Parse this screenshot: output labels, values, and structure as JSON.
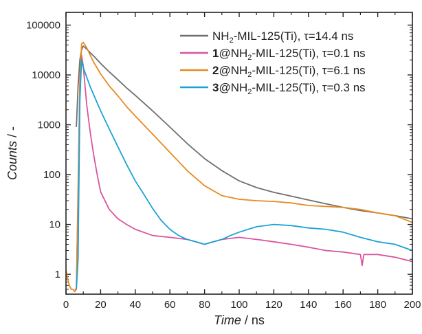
{
  "chart_data": {
    "type": "line",
    "xlabel": {
      "italic": "Time",
      "rest": " / ns"
    },
    "ylabel": {
      "italic": "Counts",
      "rest": " / -"
    },
    "xlim": [
      0,
      200
    ],
    "ylim": [
      0.4,
      180000
    ],
    "yscale": "log",
    "x_ticks": [
      0,
      20,
      40,
      60,
      80,
      100,
      120,
      140,
      160,
      180,
      200
    ],
    "y_ticks": [
      1,
      10,
      100,
      1000,
      10000,
      100000
    ],
    "y_tick_labels": [
      "1",
      "10",
      "100",
      "1000",
      "10000",
      "100000"
    ],
    "legend_position": "top-right",
    "series": [
      {
        "name": "NH2-MIL-125(Ti), τ=14.4 ns",
        "legend": {
          "bold": "",
          "pre": "NH",
          "sub": "2",
          "post": "-MIL-125(Ti), τ=14.4 ns"
        },
        "color": "#6f6f6f",
        "x": [
          6,
          7,
          8,
          9,
          10,
          12,
          14,
          16,
          20,
          25,
          30,
          35,
          40,
          50,
          60,
          70,
          80,
          90,
          100,
          110,
          120,
          130,
          140,
          150,
          160,
          170,
          180,
          190,
          200
        ],
        "y": [
          900,
          6000,
          20000,
          32000,
          38000,
          33000,
          28000,
          24000,
          17000,
          11500,
          8000,
          5500,
          3900,
          1900,
          900,
          420,
          210,
          120,
          75,
          55,
          44,
          37,
          31,
          26,
          22,
          19,
          17,
          15,
          13
        ]
      },
      {
        "name": "1@NH2-MIL-125(Ti), τ=0.1 ns",
        "legend": {
          "bold": "1",
          "pre": "@NH",
          "sub": "2",
          "post": "-MIL-125(Ti), τ=0.1 ns"
        },
        "color": "#d9559e",
        "x": [
          5,
          6,
          7,
          8,
          9,
          10,
          11,
          12,
          14,
          16,
          18,
          20,
          25,
          30,
          35,
          40,
          50,
          60,
          70,
          80,
          90,
          100,
          110,
          120,
          130,
          140,
          150,
          160,
          170,
          171,
          172,
          180,
          190,
          200
        ],
        "y": [
          0.5,
          0.5,
          50,
          8000,
          25000,
          15000,
          6000,
          2500,
          700,
          250,
          100,
          45,
          20,
          13,
          10,
          8,
          6,
          5.5,
          5,
          4,
          5,
          5.5,
          5,
          4.5,
          4,
          3.5,
          3,
          2.8,
          2.5,
          1.5,
          2.5,
          2.5,
          2.2,
          1.8
        ]
      },
      {
        "name": "2@NH2-MIL-125(Ti), τ=6.1 ns",
        "legend": {
          "bold": "2",
          "pre": "@NH",
          "sub": "2",
          "post": "-MIL-125(Ti), τ=6.1 ns"
        },
        "color": "#e88a1f",
        "x": [
          0,
          1,
          2,
          3,
          4,
          5,
          6,
          7,
          8,
          9,
          10,
          12,
          14,
          16,
          20,
          25,
          30,
          35,
          40,
          50,
          60,
          70,
          80,
          90,
          100,
          110,
          120,
          130,
          140,
          150,
          160,
          170,
          180,
          190,
          200
        ],
        "y": [
          1.2,
          0.8,
          0.6,
          0.5,
          0.5,
          0.45,
          0.5,
          30,
          6000,
          42000,
          45000,
          35000,
          25000,
          18000,
          10500,
          6000,
          3800,
          2300,
          1500,
          650,
          280,
          120,
          60,
          38,
          32,
          30,
          29,
          27,
          24,
          23,
          22,
          20,
          17,
          15,
          11
        ]
      },
      {
        "name": "3@NH2-MIL-125(Ti), τ=0.3 ns",
        "legend": {
          "bold": "3",
          "pre": "@NH",
          "sub": "2",
          "post": "-MIL-125(Ti), τ=0.3 ns"
        },
        "color": "#1aa3d6",
        "x": [
          6,
          7,
          8,
          9,
          10,
          12,
          14,
          16,
          20,
          25,
          30,
          35,
          40,
          45,
          50,
          55,
          60,
          65,
          70,
          75,
          80,
          85,
          90,
          95,
          100,
          110,
          120,
          130,
          140,
          150,
          160,
          170,
          180,
          190,
          200
        ],
        "y": [
          0.5,
          2,
          3000,
          20000,
          14000,
          9000,
          5800,
          4000,
          1900,
          820,
          360,
          160,
          75,
          40,
          21,
          12,
          8,
          6,
          5,
          4.5,
          4,
          4.5,
          5,
          6,
          7,
          9,
          10,
          9.5,
          8.5,
          8,
          7,
          5.5,
          4.5,
          4,
          3
        ]
      }
    ]
  }
}
